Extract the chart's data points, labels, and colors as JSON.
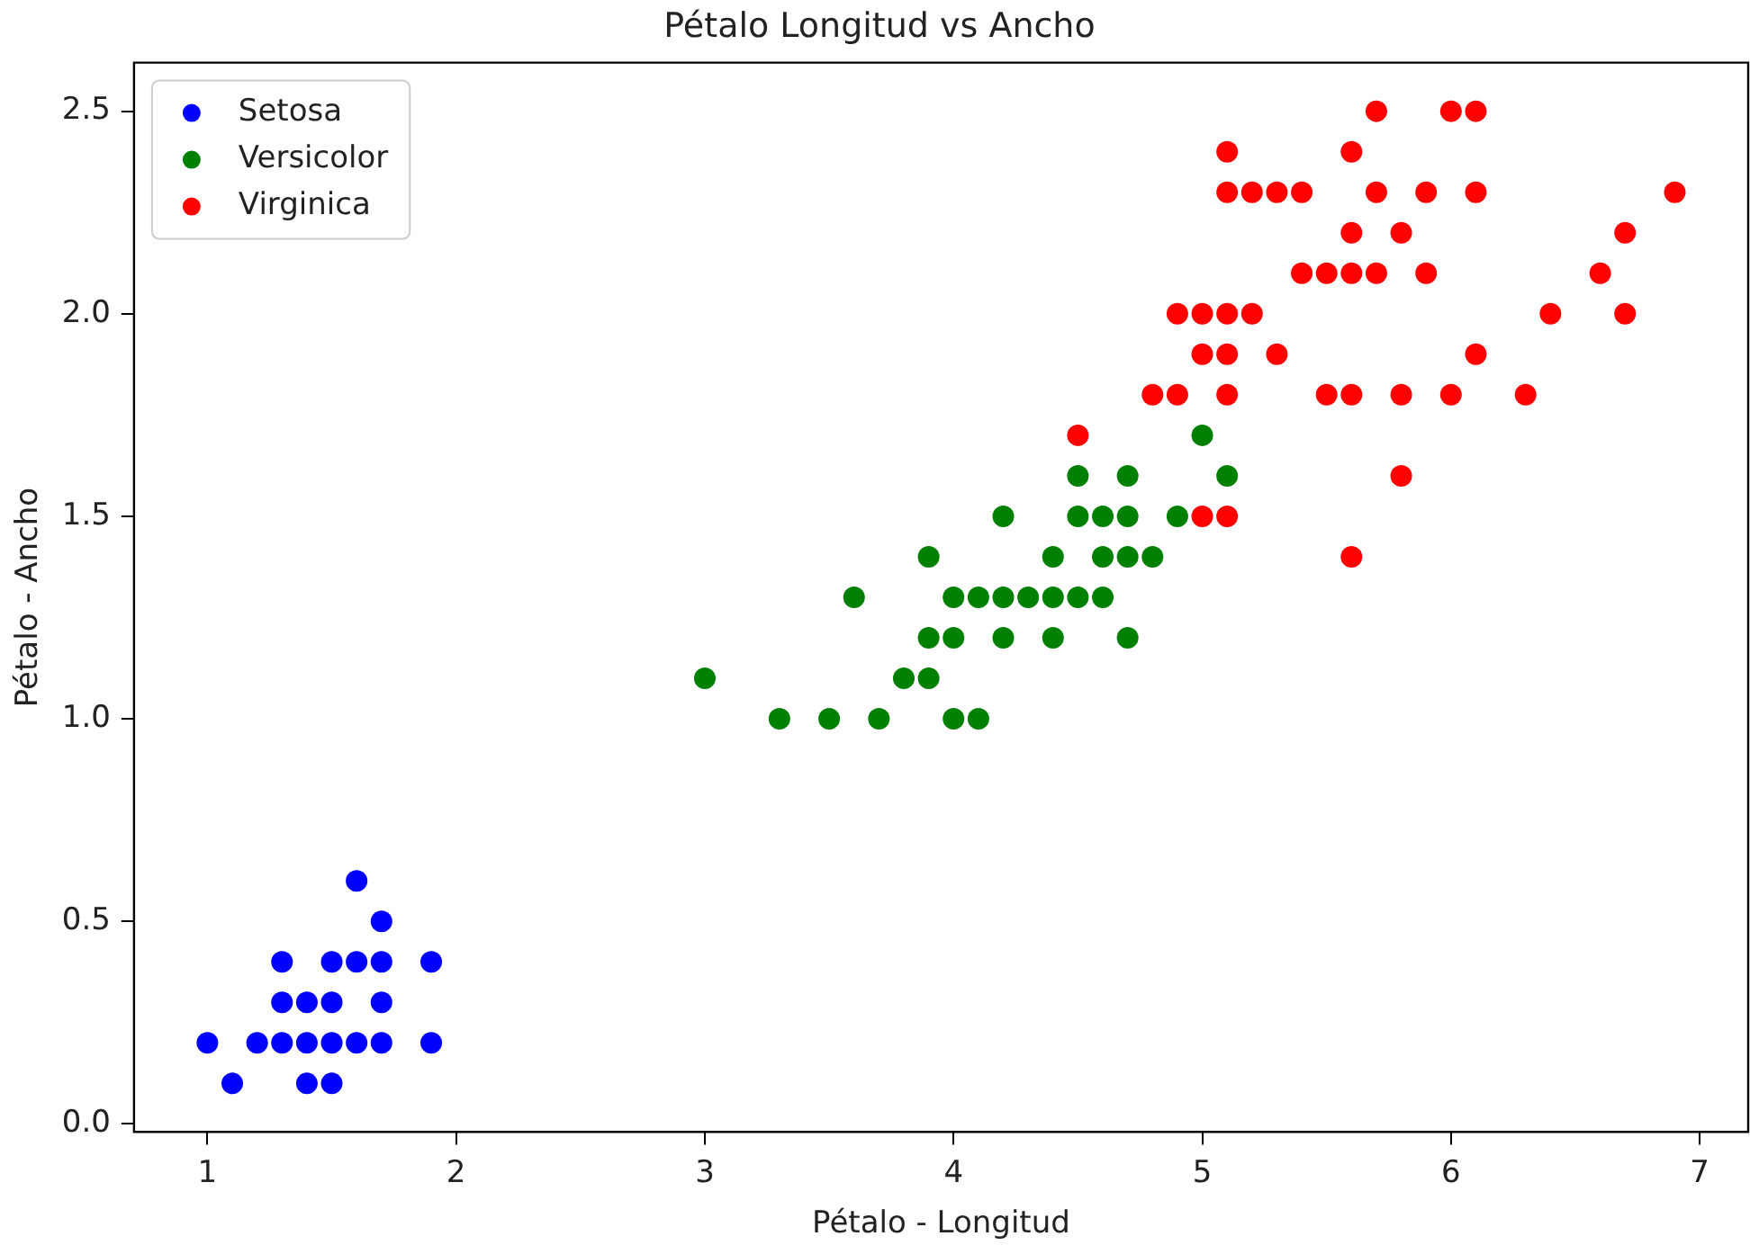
{
  "chart_data": {
    "type": "scatter",
    "title": "Pétalo Longitud vs Ancho",
    "xlabel": "Pétalo - Longitud",
    "ylabel": "Pétalo - Ancho",
    "xlim": [
      0.705,
      7.195
    ],
    "ylim": [
      -0.02,
      2.62
    ],
    "xticks": [
      1,
      2,
      3,
      4,
      5,
      6,
      7
    ],
    "yticks": [
      {
        "value": 0,
        "label": "0.0"
      },
      {
        "value": 0.5,
        "label": "0.5"
      },
      {
        "value": 1,
        "label": "1.0"
      },
      {
        "value": 1.5,
        "label": "1.5"
      },
      {
        "value": 2,
        "label": "2.0"
      },
      {
        "value": 2.5,
        "label": "2.5"
      }
    ],
    "grid": false,
    "legend": "top left",
    "marker": "circle",
    "series": [
      {
        "name": "Setosa",
        "color": "#0000ff",
        "x": [
          1.4,
          1.3,
          1.5,
          1.7,
          1.4,
          1.5,
          1.6,
          1.4,
          1.1,
          1.2,
          1.5,
          1.3,
          1.7,
          1.5,
          1.7,
          1.0,
          1.7,
          1.9,
          1.6,
          1.3,
          1.6,
          1.9
        ],
        "values": [
          0.2,
          0.2,
          0.2,
          0.4,
          0.3,
          0.1,
          0.2,
          0.1,
          0.1,
          0.2,
          0.4,
          0.4,
          0.3,
          0.3,
          0.2,
          0.2,
          0.5,
          0.2,
          0.4,
          0.3,
          0.6,
          0.4
        ]
      },
      {
        "name": "Versicolor",
        "color": "#008000",
        "x": [
          4.7,
          4.5,
          4.9,
          4.0,
          4.6,
          4.5,
          4.7,
          3.3,
          4.6,
          3.9,
          3.5,
          4.2,
          4.0,
          3.6,
          4.4,
          4.1,
          3.9,
          4.7,
          4.3,
          4.8,
          5.0,
          3.8,
          3.7,
          3.9,
          5.1,
          4.5,
          4.7,
          4.4,
          4.1,
          4.4,
          4.6,
          4.0,
          4.2,
          4.2,
          3.0
        ],
        "values": [
          1.4,
          1.5,
          1.5,
          1.3,
          1.5,
          1.3,
          1.6,
          1.0,
          1.3,
          1.4,
          1.0,
          1.5,
          1.0,
          1.3,
          1.4,
          1.0,
          1.1,
          1.2,
          1.3,
          1.4,
          1.7,
          1.1,
          1.0,
          1.2,
          1.6,
          1.6,
          1.5,
          1.3,
          1.3,
          1.2,
          1.4,
          1.2,
          1.3,
          1.2,
          1.1
        ]
      },
      {
        "name": "Virginica",
        "color": "#ff0000",
        "x": [
          6.0,
          5.1,
          5.9,
          5.6,
          5.8,
          6.6,
          4.5,
          6.3,
          5.8,
          6.1,
          5.1,
          5.3,
          5.5,
          5.0,
          5.1,
          5.3,
          5.5,
          6.7,
          6.9,
          5.0,
          5.7,
          4.9,
          6.7,
          4.9,
          5.7,
          6.0,
          4.8,
          5.6,
          5.8,
          6.1,
          6.4,
          5.6,
          5.1,
          5.6,
          6.1,
          5.6,
          5.4,
          5.1,
          5.9,
          5.7,
          5.2,
          5.0,
          5.2,
          5.4,
          5.1
        ],
        "values": [
          2.5,
          1.9,
          2.1,
          1.8,
          2.2,
          2.1,
          1.7,
          1.8,
          1.8,
          2.5,
          2.0,
          1.9,
          2.1,
          2.0,
          2.4,
          2.3,
          1.8,
          2.2,
          2.3,
          1.5,
          2.3,
          2.0,
          2.0,
          1.8,
          2.1,
          1.8,
          1.8,
          2.1,
          1.6,
          1.9,
          2.0,
          2.2,
          1.5,
          1.4,
          2.3,
          2.4,
          2.1,
          2.3,
          2.3,
          2.5,
          2.3,
          1.9,
          2.0,
          2.3,
          1.8
        ]
      }
    ]
  }
}
